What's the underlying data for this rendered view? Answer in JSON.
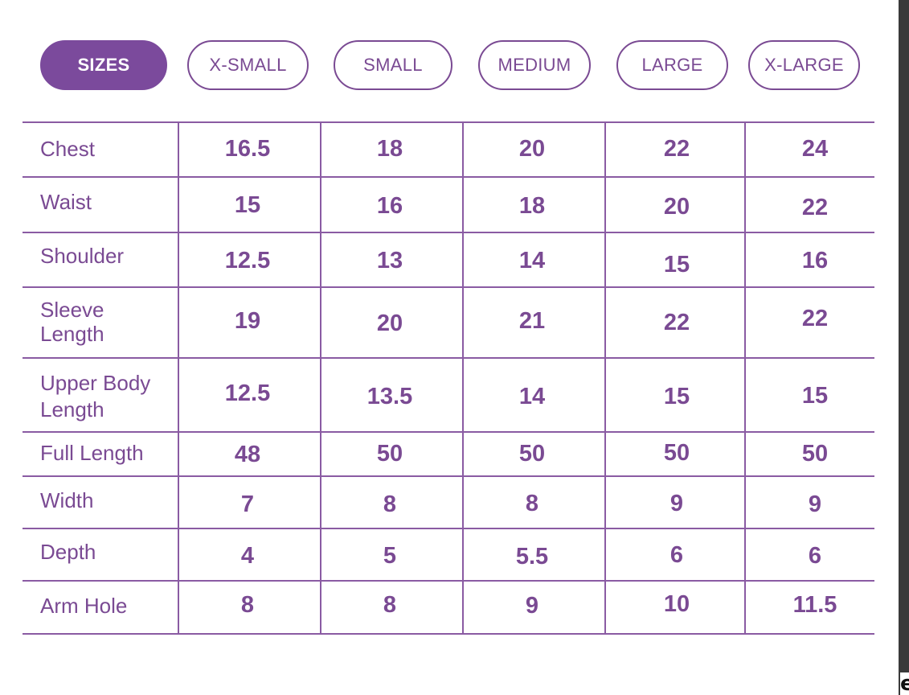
{
  "header": {
    "title": "SIZES",
    "sizes": [
      "X-SMALL",
      "SMALL",
      "MEDIUM",
      "LARGE",
      "X-LARGE"
    ]
  },
  "rows": [
    {
      "label": "Chest",
      "values": [
        "16.5",
        "18",
        "20",
        "22",
        "24"
      ]
    },
    {
      "label": "Waist",
      "values": [
        "15",
        "16",
        "18",
        "20",
        "22"
      ]
    },
    {
      "label": "Shoulder",
      "values": [
        "12.5",
        "13",
        "14",
        "15",
        "16"
      ]
    },
    {
      "label": "Sleeve\nLength",
      "values": [
        "19",
        "20",
        "21",
        "22",
        "22"
      ]
    },
    {
      "label": "Upper Body\nLength",
      "values": [
        "12.5",
        "13.5",
        "14",
        "15",
        "15"
      ]
    },
    {
      "label": "Full Length",
      "values": [
        "48",
        "50",
        "50",
        "50",
        "50"
      ]
    },
    {
      "label": "Width",
      "values": [
        "7",
        "8",
        "8",
        "9",
        "9"
      ]
    },
    {
      "label": "Depth",
      "values": [
        "4",
        "5",
        "5.5",
        "6",
        "6"
      ]
    },
    {
      "label": "Arm Hole",
      "values": [
        "8",
        "8",
        "9",
        "10",
        "11.5"
      ]
    }
  ],
  "colors": {
    "accent": "#7b4a9c",
    "text": "#7a4a93",
    "lines": "#8a5ba3"
  }
}
